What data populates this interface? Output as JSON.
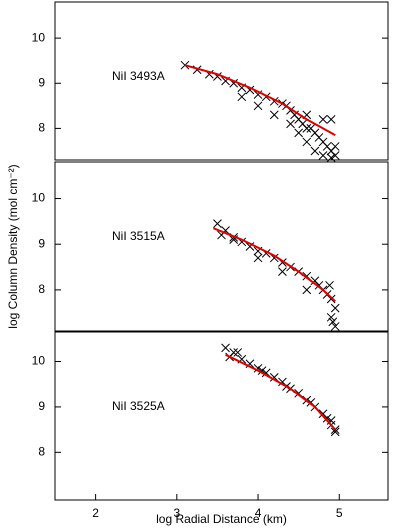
{
  "chart_data": [
    {
      "type": "scatter",
      "annotation": "NiI 3493A",
      "xlim": [
        1.5,
        5.6
      ],
      "ylim": [
        7.3,
        10.8
      ],
      "yticks": [
        8,
        9,
        10
      ],
      "series": [
        {
          "color": "#000000",
          "marker": "x",
          "x": [
            3.1,
            3.25,
            3.4,
            3.5,
            3.6,
            3.7,
            3.8,
            3.9,
            4.0,
            4.1,
            4.2,
            4.3,
            4.35,
            4.4,
            4.45,
            4.5,
            4.55,
            4.6,
            4.65,
            4.7,
            4.75,
            4.8,
            4.85,
            4.9,
            4.95,
            4.5,
            4.6,
            4.7,
            4.8,
            4.9,
            4.95,
            4.4,
            4.6,
            4.8,
            4.9,
            4.2,
            4.0,
            3.8
          ],
          "values": [
            9.4,
            9.3,
            9.2,
            9.15,
            9.05,
            9.0,
            8.9,
            8.85,
            8.75,
            8.7,
            8.6,
            8.55,
            8.5,
            8.4,
            8.3,
            8.2,
            8.1,
            8.0,
            8.0,
            7.9,
            7.8,
            7.7,
            7.6,
            7.5,
            7.4,
            7.9,
            7.7,
            7.5,
            7.4,
            8.2,
            7.6,
            8.1,
            8.3,
            8.2,
            7.35,
            8.3,
            8.5,
            8.7
          ]
        },
        {
          "color": "#e00000",
          "marker": "line",
          "x": [
            3.1,
            3.5,
            3.9,
            4.3,
            4.6,
            4.95
          ],
          "values": [
            9.4,
            9.2,
            8.9,
            8.55,
            8.2,
            7.85
          ]
        }
      ]
    },
    {
      "type": "scatter",
      "annotation": "NiI 3515A",
      "y_label": "log Column Density (mol cm⁻²)",
      "xlim": [
        1.5,
        5.6
      ],
      "ylim": [
        7.1,
        10.8
      ],
      "yticks": [
        8,
        9,
        10
      ],
      "series": [
        {
          "color": "#000000",
          "marker": "x",
          "x": [
            3.5,
            3.55,
            3.6,
            3.7,
            3.8,
            3.9,
            4.0,
            4.1,
            4.2,
            4.3,
            4.4,
            4.5,
            4.6,
            4.7,
            4.75,
            4.8,
            4.85,
            4.9,
            4.95,
            4.9,
            4.92,
            4.95,
            4.88,
            4.6,
            4.3,
            4.0,
            3.7
          ],
          "values": [
            9.45,
            9.2,
            9.3,
            9.15,
            9.05,
            8.95,
            8.85,
            8.8,
            8.7,
            8.6,
            8.5,
            8.4,
            8.3,
            8.2,
            8.1,
            8.0,
            7.9,
            7.8,
            7.6,
            7.4,
            7.3,
            7.2,
            8.1,
            8.0,
            8.4,
            8.7,
            9.1
          ]
        },
        {
          "color": "#e00000",
          "marker": "line",
          "x": [
            3.45,
            3.8,
            4.2,
            4.5,
            4.8,
            4.95
          ],
          "values": [
            9.35,
            9.1,
            8.75,
            8.4,
            8.0,
            7.75
          ]
        }
      ]
    },
    {
      "type": "scatter",
      "annotation": "NiI 3525A",
      "x_label": "log Radial Distance (km)",
      "xlim": [
        1.5,
        5.6
      ],
      "ylim": [
        6.95,
        10.65
      ],
      "yticks": [
        8,
        9,
        10
      ],
      "xticks": [
        2,
        3,
        4,
        5
      ],
      "series": [
        {
          "color": "#000000",
          "marker": "x",
          "x": [
            3.6,
            3.65,
            3.7,
            3.8,
            3.9,
            4.0,
            4.1,
            4.2,
            4.3,
            4.4,
            4.5,
            4.6,
            4.7,
            4.8,
            4.85,
            4.9,
            4.95,
            4.95,
            3.75,
            4.05,
            4.35,
            4.65,
            4.9
          ],
          "values": [
            10.3,
            10.1,
            10.2,
            10.05,
            9.95,
            9.85,
            9.75,
            9.65,
            9.55,
            9.4,
            9.3,
            9.15,
            9.0,
            8.85,
            8.75,
            8.6,
            8.5,
            8.45,
            10.2,
            9.8,
            9.45,
            9.1,
            8.7
          ]
        },
        {
          "color": "#e00000",
          "marker": "line",
          "x": [
            3.6,
            4.0,
            4.4,
            4.7,
            4.95
          ],
          "values": [
            10.15,
            9.8,
            9.4,
            9.0,
            8.5
          ]
        }
      ]
    }
  ]
}
